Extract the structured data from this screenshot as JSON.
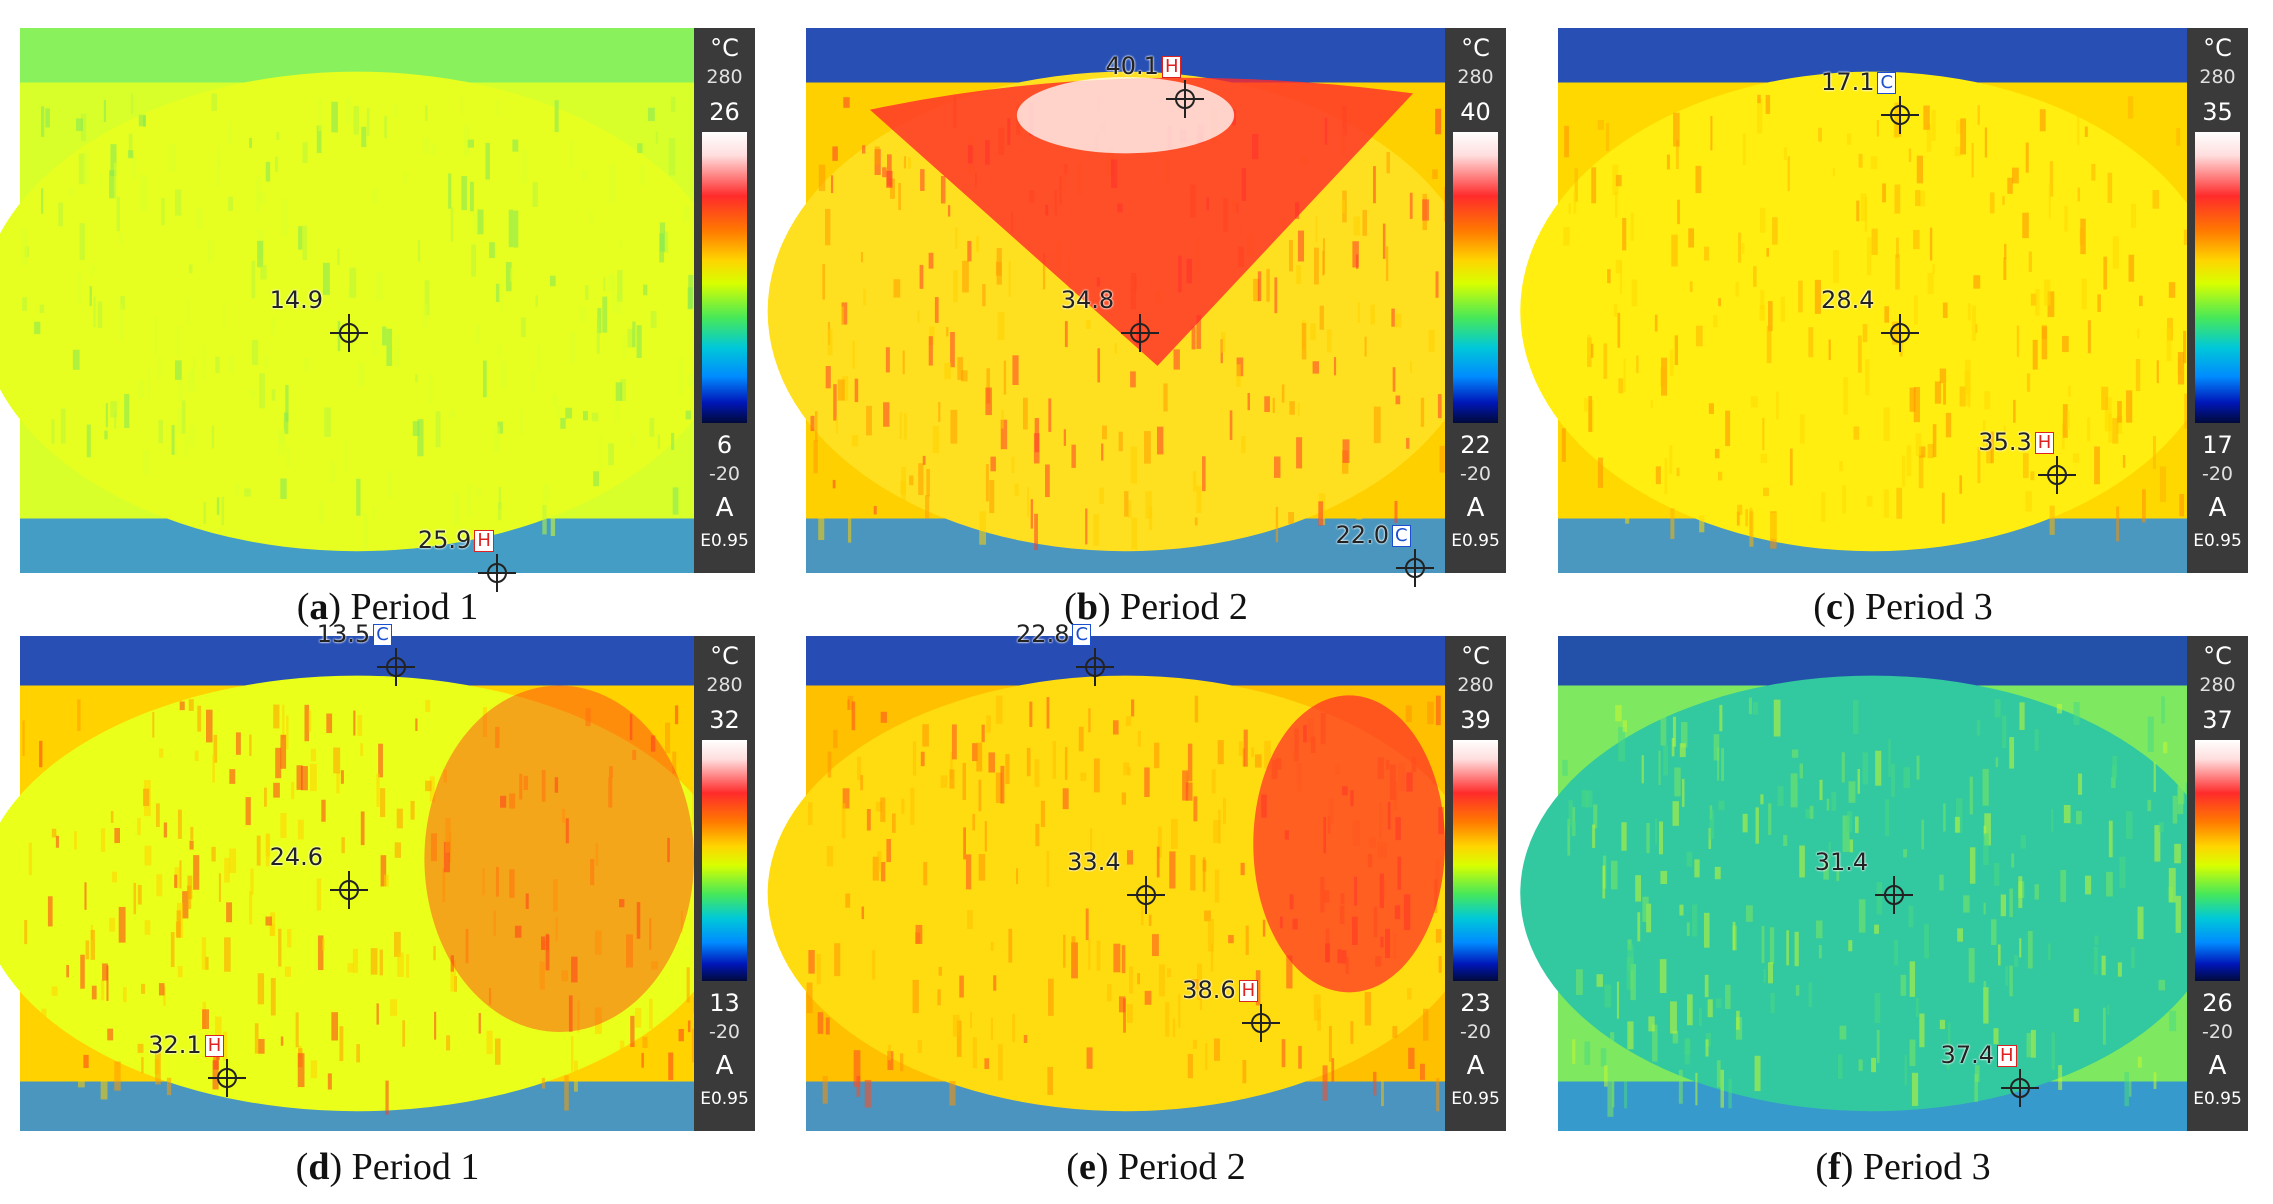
{
  "panels": [
    {
      "id": "a",
      "letter": "a",
      "caption": "Period 1",
      "scale": {
        "unit": "°C",
        "max_range": "280",
        "top": "26",
        "bottom": "6",
        "min_range": "-20",
        "mode": "A",
        "emissivity": "E0.95"
      },
      "readings": [
        {
          "value": "14.9",
          "flag": ""
        },
        {
          "value": "25.9",
          "flag": "H"
        }
      ]
    },
    {
      "id": "b",
      "letter": "b",
      "caption": "Period 2",
      "scale": {
        "unit": "°C",
        "max_range": "280",
        "top": "40",
        "bottom": "22",
        "min_range": "-20",
        "mode": "A",
        "emissivity": "E0.95"
      },
      "readings": [
        {
          "value": "40.1",
          "flag": "H"
        },
        {
          "value": "34.8",
          "flag": ""
        },
        {
          "value": "22.0",
          "flag": "C"
        }
      ]
    },
    {
      "id": "c",
      "letter": "c",
      "caption": "Period 3",
      "scale": {
        "unit": "°C",
        "max_range": "280",
        "top": "35",
        "bottom": "17",
        "min_range": "-20",
        "mode": "A",
        "emissivity": "E0.95"
      },
      "readings": [
        {
          "value": "17.1",
          "flag": "C"
        },
        {
          "value": "28.4",
          "flag": ""
        },
        {
          "value": "35.3",
          "flag": "H"
        }
      ]
    },
    {
      "id": "d",
      "letter": "d",
      "caption": "Period 1",
      "scale": {
        "unit": "°C",
        "max_range": "280",
        "top": "32",
        "bottom": "13",
        "min_range": "-20",
        "mode": "A",
        "emissivity": "E0.95"
      },
      "readings": [
        {
          "value": "13.5",
          "flag": "C"
        },
        {
          "value": "24.6",
          "flag": ""
        },
        {
          "value": "32.1",
          "flag": "H"
        }
      ]
    },
    {
      "id": "e",
      "letter": "e",
      "caption": "Period 2",
      "scale": {
        "unit": "°C",
        "max_range": "280",
        "top": "39",
        "bottom": "23",
        "min_range": "-20",
        "mode": "A",
        "emissivity": "E0.95"
      },
      "readings": [
        {
          "value": "22.8",
          "flag": "C"
        },
        {
          "value": "33.4",
          "flag": ""
        },
        {
          "value": "38.6",
          "flag": "H"
        }
      ]
    },
    {
      "id": "f",
      "letter": "f",
      "caption": "Period 3",
      "scale": {
        "unit": "°C",
        "max_range": "280",
        "top": "37",
        "bottom": "26",
        "min_range": "-20",
        "mode": "A",
        "emissivity": "E0.95"
      },
      "readings": [
        {
          "value": "31.4",
          "flag": ""
        },
        {
          "value": "37.4",
          "flag": "H"
        }
      ]
    }
  ],
  "colors": {
    "hot": "#ff2020",
    "warm": "#ffb000",
    "mid": "#e8ff20",
    "cool": "#34d860",
    "cold": "#0a2aa8",
    "scale_bg": "#3a3a3a"
  }
}
